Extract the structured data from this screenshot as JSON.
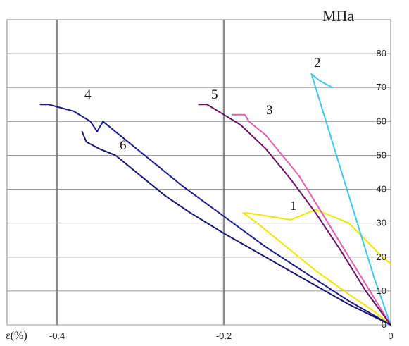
{
  "chart_data": {
    "type": "line",
    "y_unit": "МПа",
    "x_label": "ε(%)",
    "xlim": [
      -0.46,
      0
    ],
    "ylim": [
      0,
      90
    ],
    "x_ticks": [
      -0.4,
      -0.2,
      0
    ],
    "y_ticks": [
      0,
      10,
      20,
      30,
      40,
      50,
      60,
      70,
      80
    ],
    "x_tick_labels": [
      "-0.4",
      "-0.2",
      "0"
    ],
    "y_tick_labels": [
      "0",
      "10",
      "20",
      "30",
      "40",
      "50",
      "60",
      "70",
      "80"
    ],
    "grid": true,
    "legend": "none",
    "series": [
      {
        "name": "1",
        "color": "#f2e600",
        "points": [
          [
            0,
            0
          ],
          [
            -0.02,
            4
          ],
          [
            -0.05,
            9
          ],
          [
            -0.09,
            16
          ],
          [
            -0.13,
            24
          ],
          [
            -0.16,
            30
          ],
          [
            -0.177,
            33
          ],
          [
            -0.172,
            33
          ],
          [
            -0.12,
            31
          ],
          [
            -0.09,
            34
          ],
          [
            -0.05,
            30
          ],
          [
            -0.01,
            20
          ],
          [
            0,
            18
          ]
        ]
      },
      {
        "name": "2",
        "color": "#40c8e8",
        "points": [
          [
            0,
            0
          ],
          [
            -0.02,
            14
          ],
          [
            -0.04,
            30
          ],
          [
            -0.06,
            46
          ],
          [
            -0.08,
            62
          ],
          [
            -0.095,
            74
          ],
          [
            -0.085,
            72
          ],
          [
            -0.07,
            70
          ]
        ]
      },
      {
        "name": "3",
        "color": "#e060b0",
        "points": [
          [
            0,
            0
          ],
          [
            -0.03,
            12
          ],
          [
            -0.07,
            28
          ],
          [
            -0.11,
            44
          ],
          [
            -0.15,
            56
          ],
          [
            -0.17,
            60
          ],
          [
            -0.175,
            62
          ],
          [
            -0.19,
            62
          ]
        ]
      },
      {
        "name": "4",
        "color": "#1a1a8c",
        "points": [
          [
            0,
            0
          ],
          [
            -0.05,
            7
          ],
          [
            -0.1,
            15
          ],
          [
            -0.15,
            23
          ],
          [
            -0.2,
            32
          ],
          [
            -0.25,
            41
          ],
          [
            -0.3,
            51
          ],
          [
            -0.33,
            57
          ],
          [
            -0.345,
            60
          ],
          [
            -0.352,
            57
          ],
          [
            -0.36,
            60
          ],
          [
            -0.38,
            63
          ],
          [
            -0.41,
            65
          ],
          [
            -0.42,
            65
          ]
        ]
      },
      {
        "name": "5",
        "color": "#6a0f6a",
        "points": [
          [
            0,
            0
          ],
          [
            -0.03,
            10
          ],
          [
            -0.06,
            22
          ],
          [
            -0.09,
            33
          ],
          [
            -0.12,
            43
          ],
          [
            -0.15,
            52
          ],
          [
            -0.18,
            59
          ],
          [
            -0.2,
            62
          ],
          [
            -0.22,
            65
          ],
          [
            -0.23,
            65
          ]
        ]
      },
      {
        "name": "6",
        "color": "#141470",
        "points": [
          [
            0,
            0
          ],
          [
            -0.05,
            6
          ],
          [
            -0.1,
            13
          ],
          [
            -0.15,
            20
          ],
          [
            -0.2,
            27
          ],
          [
            -0.24,
            33
          ],
          [
            -0.27,
            38
          ],
          [
            -0.3,
            44
          ],
          [
            -0.33,
            50
          ],
          [
            -0.35,
            52
          ],
          [
            -0.365,
            54
          ],
          [
            -0.37,
            57
          ]
        ]
      }
    ]
  }
}
